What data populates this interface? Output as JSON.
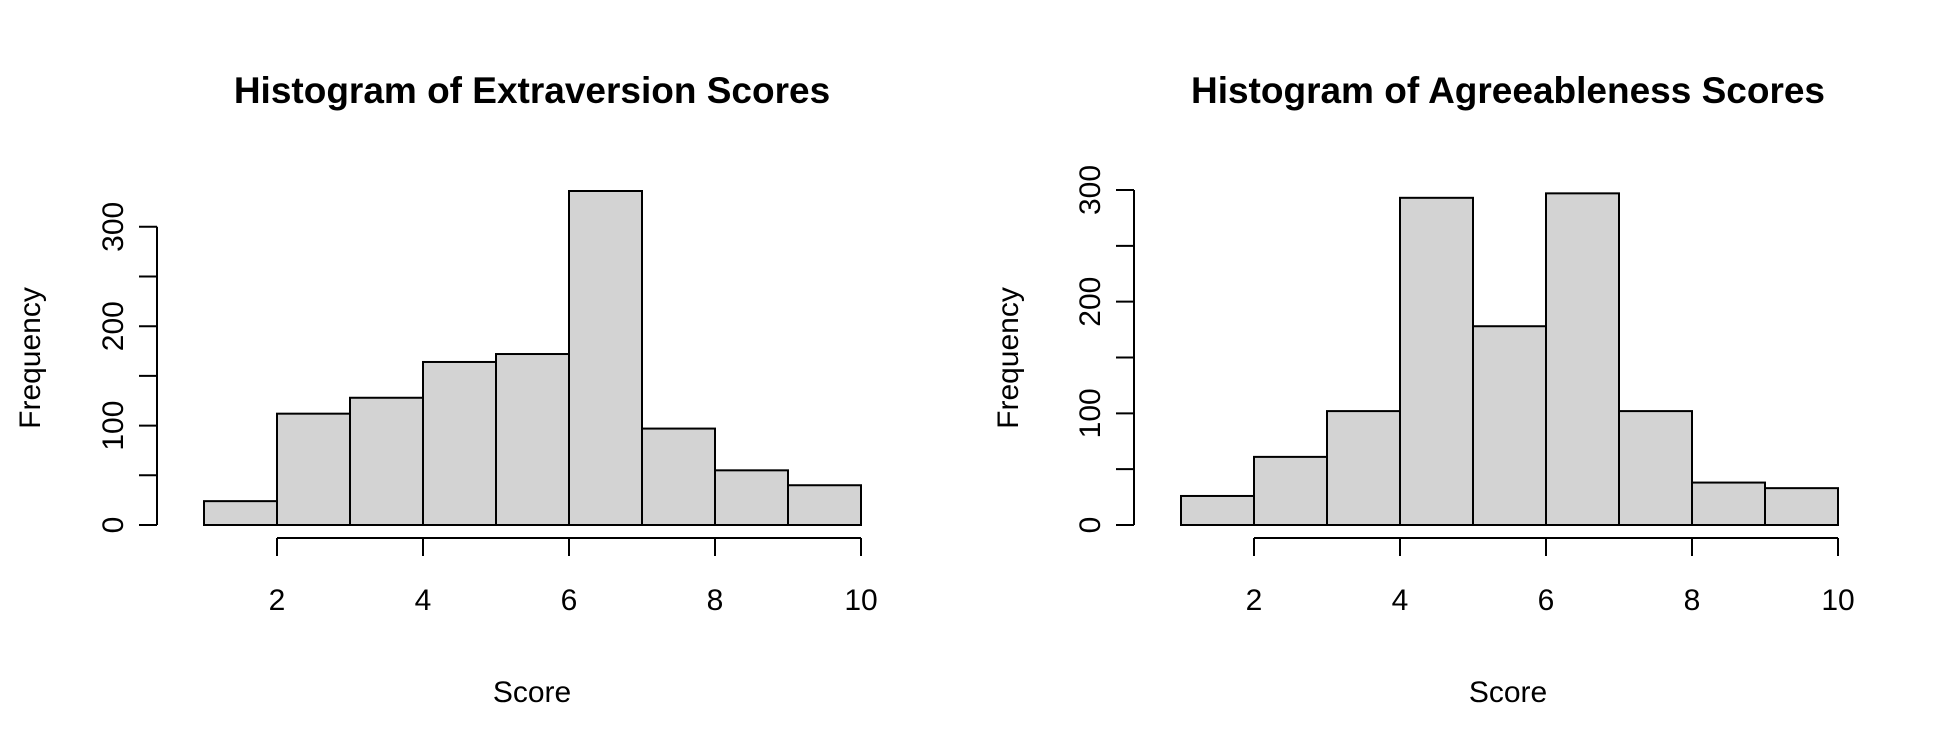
{
  "chart_data": [
    {
      "type": "bar",
      "title": "Histogram of Extraversion Scores",
      "xlabel": "Score",
      "ylabel": "Frequency",
      "bin_edges": [
        1,
        2,
        3,
        4,
        5,
        6,
        7,
        8,
        9,
        10
      ],
      "values": [
        24,
        112,
        128,
        164,
        172,
        336,
        97,
        55,
        40
      ],
      "xlim": [
        1,
        10
      ],
      "ylim": [
        0,
        336
      ],
      "x_ticks": [
        2,
        4,
        6,
        8,
        10
      ],
      "y_ticks": [
        0,
        50,
        100,
        150,
        200,
        250,
        300
      ],
      "y_tick_labels": [
        "0",
        "",
        "100",
        "",
        "200",
        "",
        "300"
      ],
      "bar_color": "#d3d3d3",
      "grid": false
    },
    {
      "type": "bar",
      "title": "Histogram of Agreeableness Scores",
      "xlabel": "Score",
      "ylabel": "Frequency",
      "bin_edges": [
        1,
        2,
        3,
        4,
        5,
        6,
        7,
        8,
        9,
        10
      ],
      "values": [
        26,
        61,
        102,
        293,
        178,
        297,
        102,
        38,
        33
      ],
      "xlim": [
        1,
        10
      ],
      "ylim": [
        0,
        300
      ],
      "x_ticks": [
        2,
        4,
        6,
        8,
        10
      ],
      "y_ticks": [
        0,
        50,
        100,
        150,
        200,
        250,
        300
      ],
      "y_tick_labels": [
        "0",
        "",
        "100",
        "",
        "200",
        "",
        "300"
      ],
      "bar_color": "#d3d3d3",
      "grid": false
    }
  ]
}
